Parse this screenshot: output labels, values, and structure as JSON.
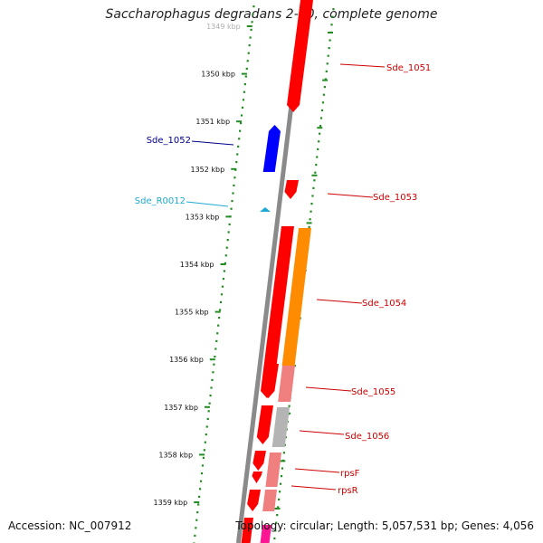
{
  "title": "Saccharophagus degradans 2-40, complete genome",
  "footer": {
    "accession": "Accession: NC_007912",
    "summary": "Topology: circular; Length: 5,057,531 bp; Genes: 4,056"
  },
  "colors": {
    "backbone": "#8a8a8a",
    "tick": "#228b22",
    "gene_red": "#ff0000",
    "gene_orange": "#ff8c00",
    "gene_pink": "#f08080",
    "gene_grey": "#b4b4b4",
    "gene_blue": "#0000ff",
    "rna_cyan": "#1eaad2",
    "label_red": "#cc0000",
    "label_blue": "#00008b",
    "label_cyan": "#1eaad2"
  },
  "kbp_ticks": [
    {
      "label": "1349 kbp"
    },
    {
      "label": "1350 kbp"
    },
    {
      "label": "1351 kbp"
    },
    {
      "label": "1352 kbp"
    },
    {
      "label": "1353 kbp"
    },
    {
      "label": "1354 kbp"
    },
    {
      "label": "1355 kbp"
    },
    {
      "label": "1356 kbp"
    },
    {
      "label": "1357 kbp"
    },
    {
      "label": "1358 kbp"
    },
    {
      "label": "1359 kbp"
    }
  ],
  "gene_labels": [
    {
      "name": "Sde_1051",
      "color": "label_red"
    },
    {
      "name": "Sde_1052",
      "color": "label_blue"
    },
    {
      "name": "Sde_R0012",
      "color": "label_cyan"
    },
    {
      "name": "Sde_1053",
      "color": "label_red"
    },
    {
      "name": "Sde_1054",
      "color": "label_red"
    },
    {
      "name": "Sde_1055",
      "color": "label_red"
    },
    {
      "name": "Sde_1056",
      "color": "label_red"
    },
    {
      "name": "rpsF",
      "color": "label_red"
    },
    {
      "name": "rpsR",
      "color": "label_red"
    }
  ]
}
